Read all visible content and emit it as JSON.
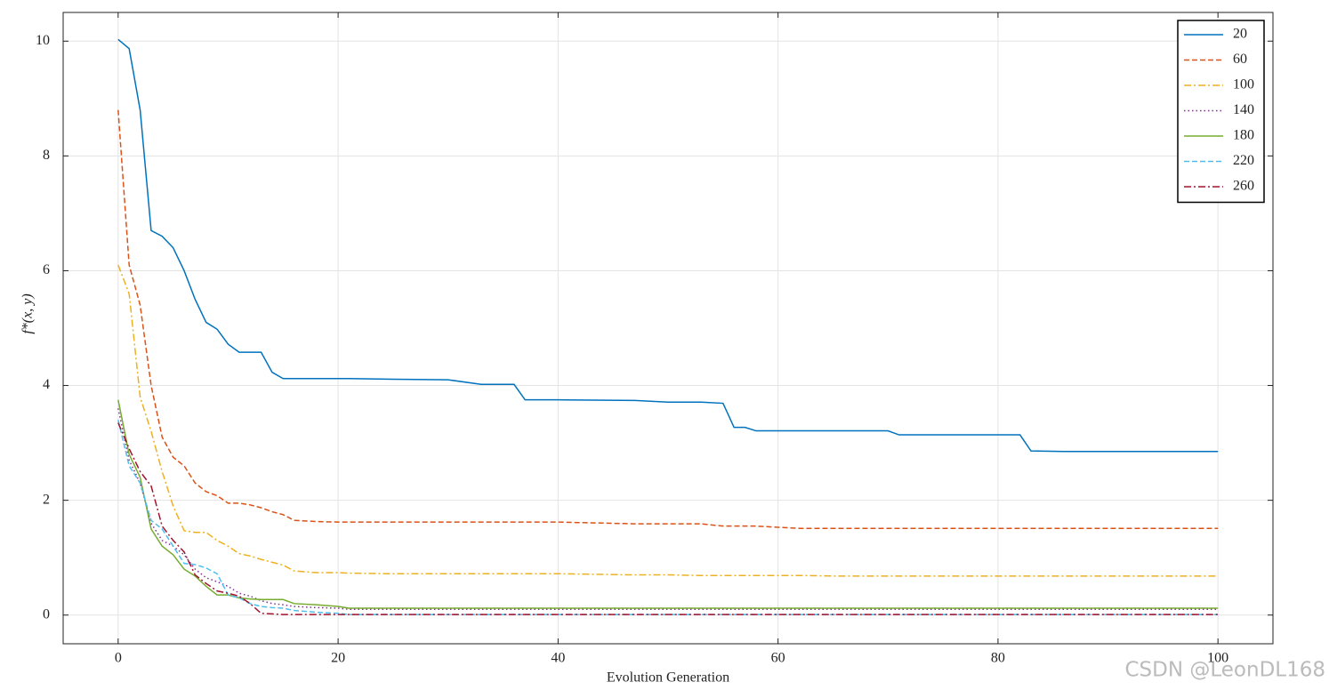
{
  "chart_data": {
    "type": "line",
    "xlabel": "Evolution Generation",
    "ylabel": "f*(x, y)",
    "watermark": "CSDN @LeonDL168",
    "xlim": [
      -5,
      105
    ],
    "ylim": [
      -0.5,
      10.5
    ],
    "xticks": [
      0,
      20,
      40,
      60,
      80,
      100
    ],
    "yticks": [
      0,
      2,
      4,
      6,
      8,
      10
    ],
    "grid": true,
    "legend": "upper right",
    "x": [
      0,
      1,
      2,
      3,
      4,
      5,
      6,
      7,
      8,
      9,
      10,
      11,
      12,
      13,
      14,
      15,
      16,
      18,
      20,
      21,
      25,
      30,
      33,
      36,
      37,
      40,
      47,
      50,
      53,
      55,
      56,
      57,
      58,
      62,
      65,
      70,
      71,
      80,
      82,
      83,
      86,
      100
    ],
    "series": [
      {
        "name": "20",
        "color": "#0072BD",
        "style": "solid",
        "values": [
          10.03,
          9.87,
          8.8,
          6.7,
          6.6,
          6.4,
          6.0,
          5.5,
          5.1,
          4.98,
          4.72,
          4.58,
          4.58,
          4.58,
          4.23,
          4.12,
          4.12,
          4.12,
          4.12,
          4.12,
          4.11,
          4.1,
          4.02,
          4.02,
          3.75,
          3.75,
          3.74,
          3.71,
          3.71,
          3.69,
          3.27,
          3.27,
          3.21,
          3.21,
          3.21,
          3.21,
          3.14,
          3.14,
          3.14,
          2.86,
          2.85,
          2.85
        ]
      },
      {
        "name": "60",
        "color": "#D95319",
        "style": "dashed",
        "values": [
          8.8,
          6.1,
          5.4,
          4.0,
          3.1,
          2.75,
          2.6,
          2.3,
          2.15,
          2.08,
          1.95,
          1.95,
          1.92,
          1.87,
          1.8,
          1.75,
          1.65,
          1.63,
          1.62,
          1.62,
          1.62,
          1.62,
          1.62,
          1.62,
          1.62,
          1.62,
          1.59,
          1.59,
          1.59,
          1.55,
          1.55,
          1.55,
          1.55,
          1.51,
          1.51,
          1.51,
          1.51,
          1.51,
          1.51,
          1.51,
          1.51,
          1.51
        ]
      },
      {
        "name": "100",
        "color": "#EDB120",
        "style": "dashdot",
        "values": [
          6.1,
          5.6,
          3.8,
          3.2,
          2.5,
          1.9,
          1.47,
          1.44,
          1.44,
          1.3,
          1.2,
          1.07,
          1.03,
          0.97,
          0.92,
          0.87,
          0.77,
          0.74,
          0.74,
          0.73,
          0.72,
          0.72,
          0.72,
          0.72,
          0.72,
          0.72,
          0.7,
          0.7,
          0.69,
          0.69,
          0.69,
          0.69,
          0.69,
          0.69,
          0.68,
          0.68,
          0.68,
          0.68,
          0.68,
          0.68,
          0.68,
          0.68
        ]
      },
      {
        "name": "140",
        "color": "#7E2F8E",
        "style": "dotted",
        "values": [
          3.6,
          2.7,
          2.3,
          1.6,
          1.3,
          1.2,
          1.05,
          0.8,
          0.65,
          0.58,
          0.5,
          0.38,
          0.33,
          0.25,
          0.2,
          0.18,
          0.15,
          0.13,
          0.12,
          0.1,
          0.1,
          0.1,
          0.1,
          0.1,
          0.1,
          0.1,
          0.1,
          0.1,
          0.1,
          0.1,
          0.1,
          0.1,
          0.1,
          0.1,
          0.1,
          0.1,
          0.1,
          0.1,
          0.1,
          0.1,
          0.1,
          0.1
        ]
      },
      {
        "name": "180",
        "color": "#77AC30",
        "style": "solid",
        "values": [
          3.75,
          2.8,
          2.4,
          1.5,
          1.2,
          1.05,
          0.8,
          0.68,
          0.5,
          0.35,
          0.35,
          0.3,
          0.28,
          0.27,
          0.27,
          0.27,
          0.2,
          0.18,
          0.15,
          0.12,
          0.12,
          0.12,
          0.12,
          0.12,
          0.12,
          0.12,
          0.12,
          0.12,
          0.12,
          0.12,
          0.12,
          0.12,
          0.12,
          0.12,
          0.12,
          0.12,
          0.12,
          0.12,
          0.12,
          0.12,
          0.12,
          0.12
        ]
      },
      {
        "name": "220",
        "color": "#4DBEEE",
        "style": "dashed",
        "values": [
          3.4,
          2.6,
          2.3,
          1.65,
          1.5,
          1.2,
          0.9,
          0.88,
          0.82,
          0.72,
          0.35,
          0.3,
          0.2,
          0.15,
          0.13,
          0.12,
          0.08,
          0.05,
          0.03,
          0.01,
          0.01,
          0.01,
          0.01,
          0.01,
          0.01,
          0.01,
          0.01,
          0.01,
          0.01,
          0.01,
          0.01,
          0.01,
          0.01,
          0.01,
          0.01,
          0.01,
          0.01,
          0.01,
          0.01,
          0.01,
          0.01,
          0.01
        ]
      },
      {
        "name": "260",
        "color": "#A2142F",
        "style": "dashdot",
        "values": [
          3.35,
          2.9,
          2.5,
          2.25,
          1.55,
          1.3,
          1.1,
          0.7,
          0.55,
          0.42,
          0.38,
          0.33,
          0.2,
          0.03,
          0.02,
          0.01,
          0.01,
          0.01,
          0.01,
          0.01,
          0.01,
          0.01,
          0.01,
          0.01,
          0.01,
          0.01,
          0.01,
          0.01,
          0.01,
          0.01,
          0.01,
          0.01,
          0.01,
          0.01,
          0.01,
          0.01,
          0.01,
          0.01,
          0.01,
          0.01,
          0.01,
          0.01
        ]
      }
    ]
  }
}
